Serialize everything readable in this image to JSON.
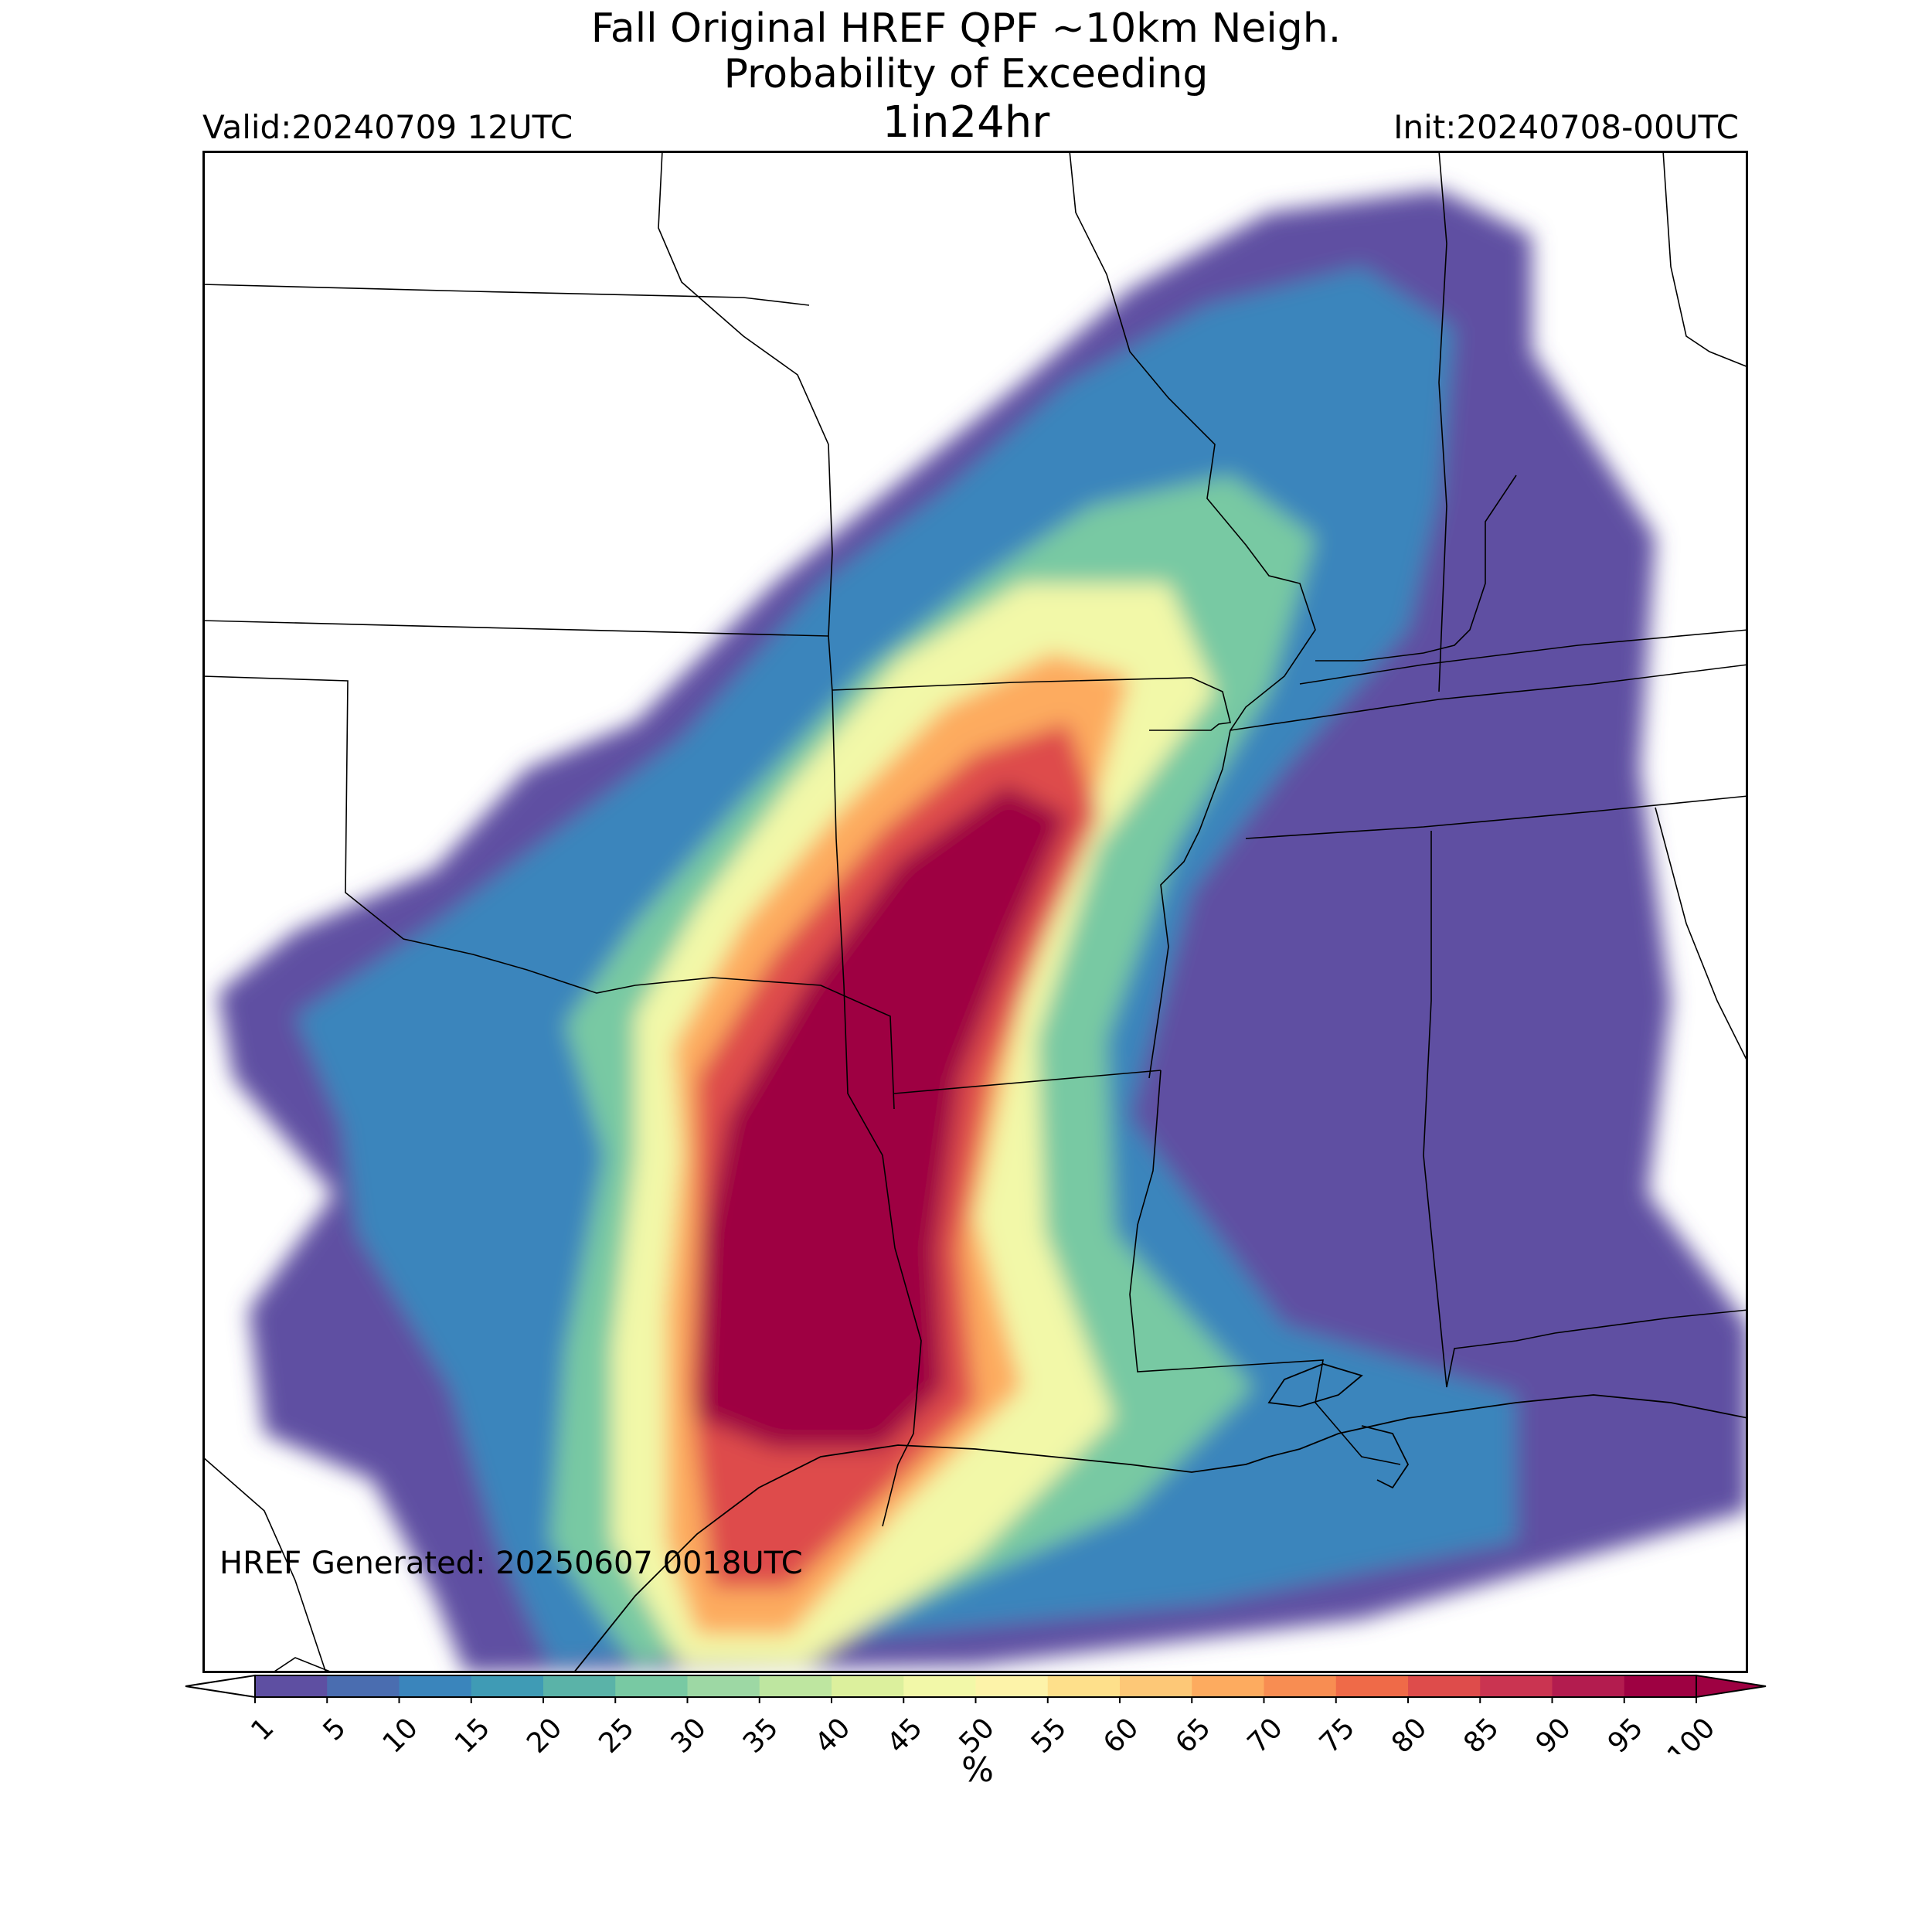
{
  "title": {
    "line1": "Fall Original HREF QPF ~10km Neigh.",
    "line2": "Probability of Exceeding",
    "line3": "1in24hr"
  },
  "valid": "Valid:20240709 12UTC",
  "init": "Init:20240708-00UTC",
  "generated": "HREF Generated: 20250607 0018UTC",
  "colorbar": {
    "ticks": [
      "1",
      "5",
      "10",
      "15",
      "20",
      "25",
      "30",
      "35",
      "40",
      "45",
      "50",
      "55",
      "60",
      "65",
      "70",
      "75",
      "80",
      "85",
      "90",
      "95",
      "100"
    ],
    "colors": [
      "#5e4fa2",
      "#4a6db0",
      "#3a85bc",
      "#3f9bb5",
      "#5ab3a8",
      "#78c9a3",
      "#9dd8a4",
      "#bee6a0",
      "#dcf09d",
      "#f2f8a8",
      "#fdf3a9",
      "#fee08b",
      "#fdc877",
      "#fdab5f",
      "#f88d52",
      "#ef6a48",
      "#de4c4b",
      "#ca3451",
      "#b31c4f",
      "#9e0142"
    ],
    "under_color": "#ffffff",
    "over_color": "#9e0142",
    "unit": "%"
  }
}
